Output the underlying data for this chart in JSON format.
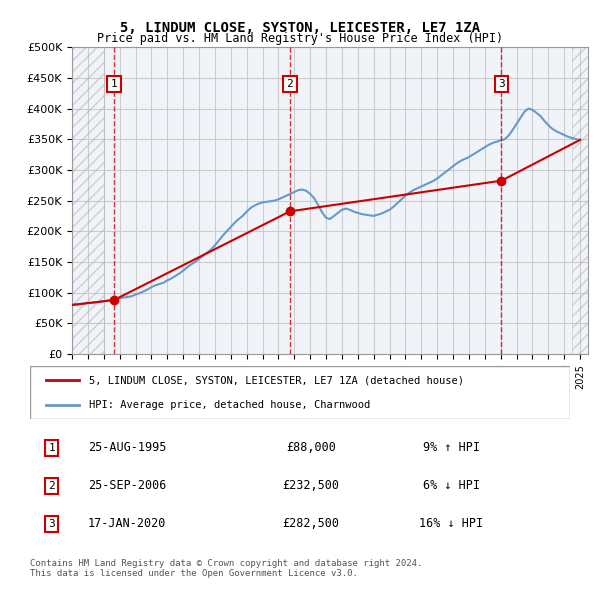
{
  "title": "5, LINDUM CLOSE, SYSTON, LEICESTER, LE7 1ZA",
  "subtitle": "Price paid vs. HM Land Registry's House Price Index (HPI)",
  "legend_property": "5, LINDUM CLOSE, SYSTON, LEICESTER, LE7 1ZA (detached house)",
  "legend_hpi": "HPI: Average price, detached house, Charnwood",
  "footnote": "Contains HM Land Registry data © Crown copyright and database right 2024.\nThis data is licensed under the Open Government Licence v3.0.",
  "transactions": [
    {
      "num": 1,
      "date": "25-AUG-1995",
      "price": "£88,000",
      "pct": "9% ↑ HPI",
      "year": 1995.65
    },
    {
      "num": 2,
      "date": "25-SEP-2006",
      "price": "£232,500",
      "pct": "6% ↓ HPI",
      "year": 2006.73
    },
    {
      "num": 3,
      "date": "17-JAN-2020",
      "price": "£282,500",
      "pct": "16% ↓ HPI",
      "year": 2020.05
    }
  ],
  "transaction_prices": [
    88000,
    232500,
    282500
  ],
  "xlim": [
    1993.0,
    2025.5
  ],
  "ylim": [
    0,
    500000
  ],
  "yticks": [
    0,
    50000,
    100000,
    150000,
    200000,
    250000,
    300000,
    350000,
    400000,
    450000,
    500000
  ],
  "ytick_labels": [
    "£0",
    "£50K",
    "£100K",
    "£150K",
    "£200K",
    "£250K",
    "£300K",
    "£350K",
    "£400K",
    "£450K",
    "£500K"
  ],
  "property_color": "#cc0000",
  "hpi_color": "#6699cc",
  "hatch_color": "#cccccc",
  "grid_color": "#cccccc",
  "bg_color": "#e8eef5",
  "plot_bg": "#f0f4f8",
  "hpi_years": [
    1993,
    1993.25,
    1993.5,
    1993.75,
    1994,
    1994.25,
    1994.5,
    1994.75,
    1995,
    1995.25,
    1995.5,
    1995.75,
    1996,
    1996.25,
    1996.5,
    1996.75,
    1997,
    1997.25,
    1997.5,
    1997.75,
    1998,
    1998.25,
    1998.5,
    1998.75,
    1999,
    1999.25,
    1999.5,
    1999.75,
    2000,
    2000.25,
    2000.5,
    2000.75,
    2001,
    2001.25,
    2001.5,
    2001.75,
    2002,
    2002.25,
    2002.5,
    2002.75,
    2003,
    2003.25,
    2003.5,
    2003.75,
    2004,
    2004.25,
    2004.5,
    2004.75,
    2005,
    2005.25,
    2005.5,
    2005.75,
    2006,
    2006.25,
    2006.5,
    2006.75,
    2007,
    2007.25,
    2007.5,
    2007.75,
    2008,
    2008.25,
    2008.5,
    2008.75,
    2009,
    2009.25,
    2009.5,
    2009.75,
    2010,
    2010.25,
    2010.5,
    2010.75,
    2011,
    2011.25,
    2011.5,
    2011.75,
    2012,
    2012.25,
    2012.5,
    2012.75,
    2013,
    2013.25,
    2013.5,
    2013.75,
    2014,
    2014.25,
    2014.5,
    2014.75,
    2015,
    2015.25,
    2015.5,
    2015.75,
    2016,
    2016.25,
    2016.5,
    2016.75,
    2017,
    2017.25,
    2017.5,
    2017.75,
    2018,
    2018.25,
    2018.5,
    2018.75,
    2019,
    2019.25,
    2019.5,
    2019.75,
    2020,
    2020.25,
    2020.5,
    2020.75,
    2021,
    2021.25,
    2021.5,
    2021.75,
    2022,
    2022.25,
    2022.5,
    2022.75,
    2023,
    2023.25,
    2023.5,
    2023.75,
    2024,
    2024.25,
    2024.5,
    2024.75,
    2025
  ],
  "hpi_values": [
    80000,
    80500,
    81000,
    82000,
    83000,
    83500,
    84000,
    84500,
    86000,
    87000,
    88000,
    89000,
    91000,
    92000,
    93000,
    94000,
    97000,
    99000,
    102000,
    105000,
    109000,
    112000,
    114000,
    116000,
    120000,
    123000,
    127000,
    131000,
    136000,
    141000,
    146000,
    150000,
    155000,
    160000,
    165000,
    170000,
    177000,
    185000,
    193000,
    200000,
    207000,
    214000,
    220000,
    225000,
    232000,
    238000,
    242000,
    245000,
    247000,
    248000,
    249000,
    250000,
    252000,
    255000,
    258000,
    261000,
    264000,
    267000,
    268000,
    266000,
    261000,
    254000,
    243000,
    231000,
    222000,
    220000,
    225000,
    230000,
    235000,
    237000,
    235000,
    232000,
    230000,
    228000,
    227000,
    226000,
    225000,
    227000,
    229000,
    232000,
    235000,
    240000,
    246000,
    252000,
    258000,
    263000,
    267000,
    270000,
    273000,
    276000,
    279000,
    282000,
    286000,
    291000,
    296000,
    301000,
    306000,
    311000,
    315000,
    318000,
    321000,
    325000,
    329000,
    333000,
    337000,
    341000,
    344000,
    346000,
    348000,
    350000,
    356000,
    365000,
    375000,
    385000,
    395000,
    400000,
    398000,
    393000,
    388000,
    380000,
    373000,
    367000,
    363000,
    360000,
    357000,
    354000,
    352000,
    350000,
    349000
  ],
  "prop_years": [
    1993,
    1995.65,
    2006.73,
    2020.05,
    2025
  ],
  "prop_values": [
    80000,
    88000,
    232500,
    282500,
    349000
  ]
}
